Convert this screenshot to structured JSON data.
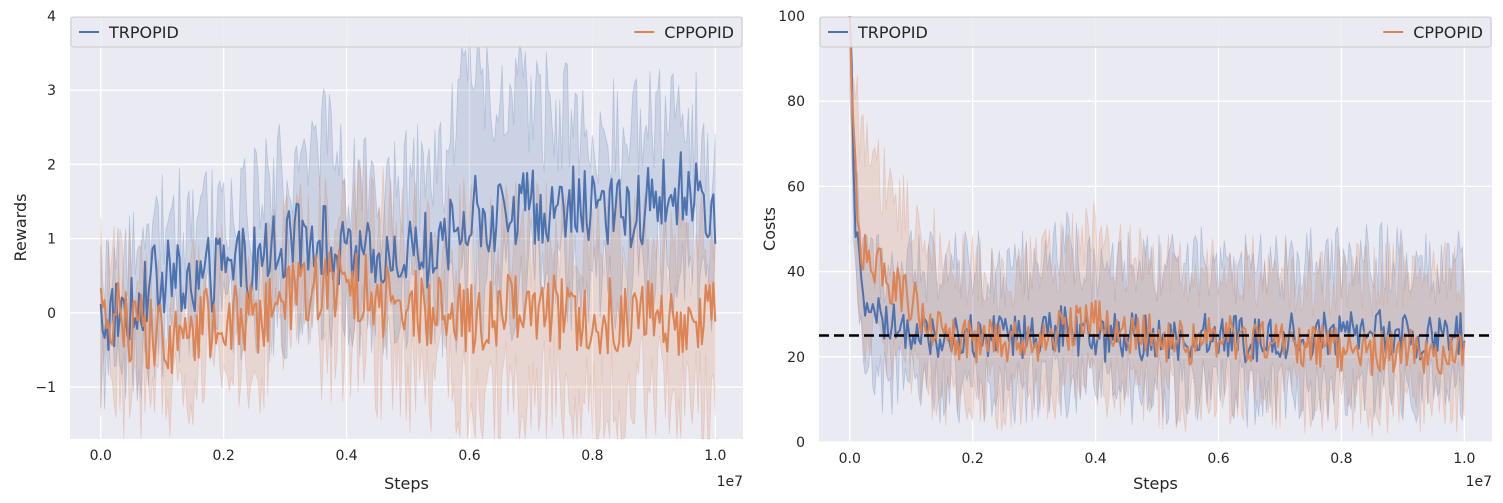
{
  "chart_data": [
    {
      "type": "line",
      "title": "",
      "xlabel": "Steps",
      "ylabel": "Rewards",
      "x_offset_label": "1e7",
      "x_range": [
        -0.05,
        1.045
      ],
      "ylim": [
        -1.7,
        4.0
      ],
      "x_ticks": [
        0.0,
        0.2,
        0.4,
        0.6,
        0.8,
        1.0
      ],
      "x_tick_labels": [
        "0.0",
        "0.2",
        "0.4",
        "0.6",
        "0.8",
        "1.0"
      ],
      "y_ticks": [
        -1,
        0,
        1,
        2,
        3,
        4
      ],
      "y_tick_labels": [
        "−1",
        "0",
        "1",
        "2",
        "3",
        "4"
      ],
      "grid": true,
      "shaded_band": true,
      "legend": {
        "placement": "top",
        "entries": [
          "TRPOPID",
          "CPPOPID"
        ]
      },
      "series": [
        {
          "name": "TRPOPID",
          "color": "#4c72b0",
          "x": [
            0.0,
            0.05,
            0.1,
            0.15,
            0.2,
            0.25,
            0.3,
            0.35,
            0.4,
            0.45,
            0.5,
            0.55,
            0.6,
            0.65,
            0.7,
            0.75,
            0.8,
            0.85,
            0.9,
            0.95,
            1.0
          ],
          "y": [
            -0.1,
            0.1,
            0.5,
            0.4,
            0.6,
            0.7,
            0.9,
            1.1,
            0.7,
            0.7,
            0.9,
            0.8,
            1.4,
            1.3,
            1.4,
            1.5,
            1.4,
            1.3,
            1.5,
            1.7,
            1.2
          ],
          "y_low": [
            -0.8,
            -0.5,
            -0.1,
            -0.2,
            0.0,
            0.1,
            0.2,
            0.4,
            0.1,
            0.1,
            0.2,
            0.1,
            0.4,
            0.4,
            0.5,
            0.6,
            0.5,
            0.5,
            0.6,
            0.8,
            0.5
          ],
          "y_high": [
            0.5,
            0.5,
            1.4,
            1.1,
            1.3,
            1.5,
            1.8,
            2.6,
            1.6,
            1.5,
            1.7,
            1.8,
            3.3,
            2.8,
            2.8,
            2.6,
            2.3,
            2.4,
            2.5,
            2.7,
            2.0
          ]
        },
        {
          "name": "CPPOPID",
          "color": "#dd8452",
          "x": [
            0.0,
            0.05,
            0.1,
            0.15,
            0.2,
            0.25,
            0.3,
            0.35,
            0.4,
            0.45,
            0.5,
            0.55,
            0.6,
            0.65,
            0.7,
            0.75,
            0.8,
            0.85,
            0.9,
            0.95,
            1.0
          ],
          "y": [
            0.1,
            -0.2,
            -0.3,
            -0.3,
            0.0,
            -0.1,
            0.2,
            0.3,
            0.4,
            0.2,
            0.1,
            0.0,
            -0.1,
            0.0,
            0.0,
            0.0,
            -0.1,
            0.0,
            0.0,
            -0.1,
            -0.1
          ],
          "y_low": [
            -0.6,
            -1.1,
            -0.9,
            -0.8,
            -0.5,
            -0.6,
            -0.3,
            -0.4,
            -0.5,
            -0.7,
            -0.8,
            -0.9,
            -1.1,
            -1.1,
            -1.2,
            -1.1,
            -1.2,
            -1.1,
            -1.1,
            -1.1,
            -1.2
          ],
          "y_high": [
            0.5,
            0.3,
            0.1,
            0.2,
            0.4,
            0.4,
            0.9,
            1.1,
            1.3,
            1.2,
            1.1,
            1.0,
            1.0,
            1.0,
            1.0,
            1.0,
            0.9,
            0.9,
            1.0,
            0.9,
            0.8
          ]
        }
      ]
    },
    {
      "type": "line",
      "title": "",
      "xlabel": "Steps",
      "ylabel": "Costs",
      "x_offset_label": "1e7",
      "x_range": [
        -0.05,
        1.045
      ],
      "ylim": [
        0,
        100
      ],
      "x_ticks": [
        0.0,
        0.2,
        0.4,
        0.6,
        0.8,
        1.0
      ],
      "x_tick_labels": [
        "0.0",
        "0.2",
        "0.4",
        "0.6",
        "0.8",
        "1.0"
      ],
      "y_ticks": [
        0,
        20,
        40,
        60,
        80,
        100
      ],
      "y_tick_labels": [
        "0",
        "20",
        "40",
        "60",
        "80",
        "100"
      ],
      "grid": true,
      "shaded_band": true,
      "threshold": {
        "y": 25,
        "style": "dashed",
        "color": "#000000"
      },
      "legend": {
        "placement": "top",
        "entries": [
          "TRPOPID",
          "CPPOPID"
        ]
      },
      "series": [
        {
          "name": "TRPOPID",
          "color": "#4c72b0",
          "x": [
            0.0,
            0.01,
            0.02,
            0.05,
            0.1,
            0.15,
            0.2,
            0.25,
            0.3,
            0.35,
            0.4,
            0.45,
            0.5,
            0.55,
            0.6,
            0.65,
            0.7,
            0.75,
            0.8,
            0.85,
            0.9,
            0.95,
            1.0
          ],
          "y": [
            100,
            50,
            33,
            28,
            26,
            24,
            25,
            24,
            25,
            27,
            24,
            25,
            24,
            25,
            25,
            24,
            25,
            25,
            25,
            26,
            25,
            24,
            25
          ],
          "y_low": [
            90,
            35,
            20,
            15,
            14,
            12,
            13,
            12,
            13,
            14,
            12,
            13,
            12,
            13,
            13,
            12,
            13,
            13,
            13,
            14,
            13,
            12,
            13
          ],
          "y_high": [
            100,
            60,
            45,
            40,
            42,
            40,
            42,
            40,
            42,
            48,
            40,
            42,
            40,
            42,
            42,
            40,
            42,
            42,
            42,
            44,
            42,
            40,
            42
          ]
        },
        {
          "name": "CPPOPID",
          "color": "#dd8452",
          "x": [
            0.0,
            0.01,
            0.02,
            0.05,
            0.1,
            0.15,
            0.2,
            0.25,
            0.3,
            0.35,
            0.4,
            0.45,
            0.5,
            0.55,
            0.6,
            0.65,
            0.7,
            0.75,
            0.8,
            0.85,
            0.9,
            0.95,
            1.0
          ],
          "y": [
            100,
            60,
            45,
            40,
            33,
            26,
            24,
            23,
            24,
            26,
            28,
            26,
            24,
            23,
            25,
            24,
            23,
            22,
            22,
            21,
            22,
            21,
            22
          ],
          "y_low": [
            90,
            40,
            28,
            22,
            18,
            12,
            12,
            10,
            12,
            14,
            14,
            13,
            11,
            11,
            13,
            12,
            11,
            10,
            10,
            9,
            10,
            9,
            10
          ],
          "y_high": [
            100,
            80,
            70,
            62,
            52,
            44,
            40,
            38,
            40,
            44,
            48,
            44,
            40,
            40,
            42,
            40,
            40,
            38,
            38,
            38,
            40,
            40,
            38
          ]
        }
      ]
    }
  ]
}
